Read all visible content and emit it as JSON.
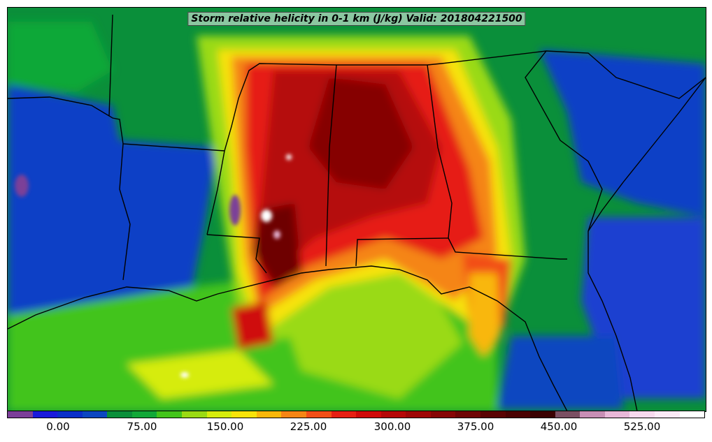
{
  "map": {
    "title": "Storm relative helicity in 0-1 km (J/kg) Valid: 201804221500",
    "region": "Southeastern United States",
    "field": "Storm relative helicity 0-1 km",
    "units": "J/kg",
    "valid_time": "201804221500"
  },
  "colorbar": {
    "colors": [
      "#7b3f98",
      "#1a1adb",
      "#0a2fc8",
      "#0c46c0",
      "#0a8f3a",
      "#11a838",
      "#43c41a",
      "#9ada13",
      "#d6ec0c",
      "#f7e30a",
      "#f9b70a",
      "#f58514",
      "#f24e17",
      "#e61f13",
      "#cf0a0a",
      "#b50808",
      "#9e0707",
      "#860606",
      "#6e0505",
      "#5a0303",
      "#4a0202",
      "#3a0101",
      "#7a4f62",
      "#c78fb5",
      "#e8b8d8",
      "#f7d9ee",
      "#fbe9f6",
      "#ffffff"
    ],
    "tick_labels": [
      "0.00",
      "75.00",
      "150.00",
      "225.00",
      "300.00",
      "375.00",
      "450.00",
      "525.00"
    ]
  }
}
